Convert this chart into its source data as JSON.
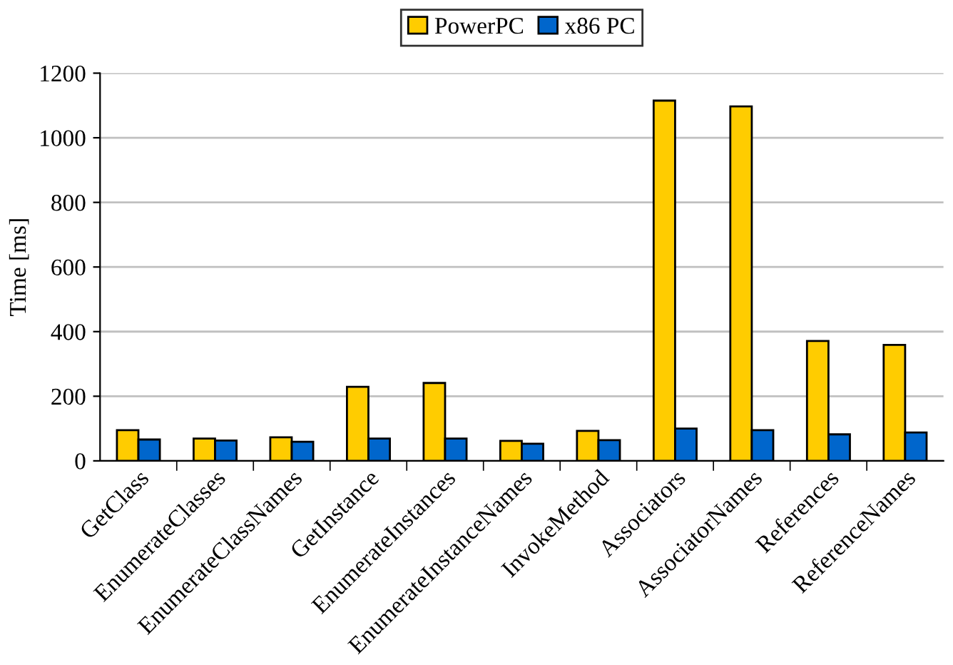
{
  "chart_data": {
    "type": "bar",
    "ylabel": "Time [ms]",
    "categories": [
      "GetClass",
      "EnumerateClasses",
      "EnumerateClassNames",
      "GetInstance",
      "EnumerateInstances",
      "EnumerateInstanceNames",
      "InvokeMethod",
      "Associators",
      "AssociatorNames",
      "References",
      "ReferenceNames"
    ],
    "series": [
      {
        "name": "PowerPC",
        "color": "#ffcc00",
        "values": [
          95,
          69,
          73,
          229,
          241,
          62,
          93,
          1115,
          1097,
          371,
          359
        ]
      },
      {
        "name": "x86 PC",
        "color": "#0066cc",
        "values": [
          66,
          63,
          59,
          69,
          69,
          53,
          64,
          100,
          95,
          82,
          88
        ]
      }
    ],
    "ylim": [
      0,
      1200
    ],
    "yticks": [
      0,
      200,
      400,
      600,
      800,
      1000,
      1200
    ],
    "grid": "y",
    "legend": "top"
  }
}
